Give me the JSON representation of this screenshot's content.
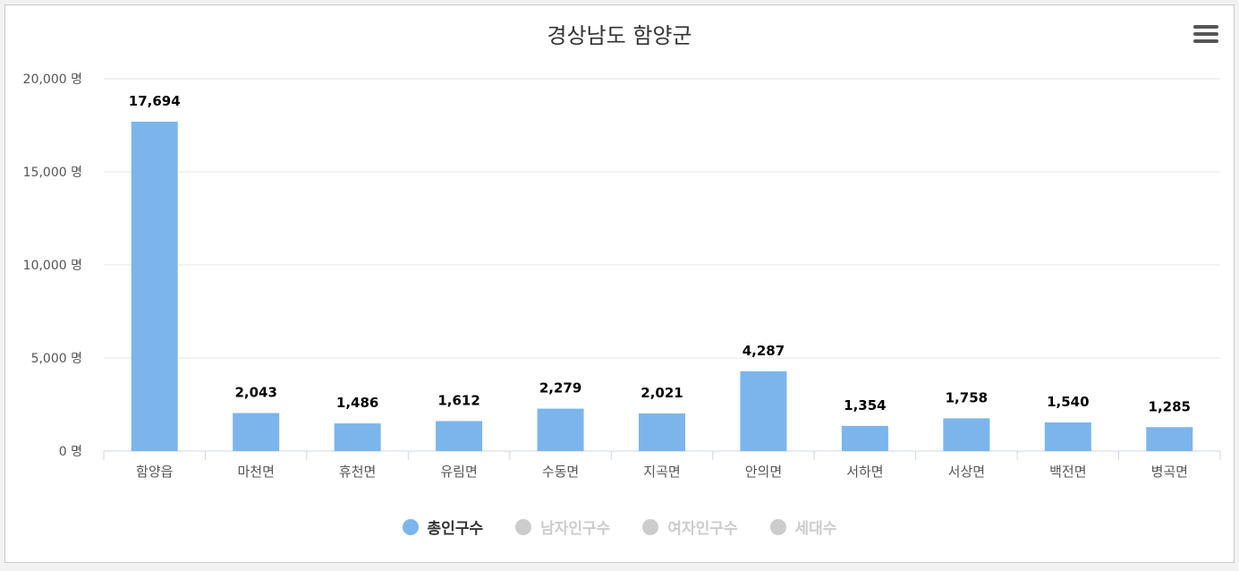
{
  "chart_data": {
    "type": "bar",
    "title": "경상남도 함양군",
    "categories": [
      "함양읍",
      "마천면",
      "휴천면",
      "유림면",
      "수동면",
      "지곡면",
      "안의면",
      "서하면",
      "서상면",
      "백전면",
      "병곡면"
    ],
    "series": [
      {
        "name": "총인구수",
        "values": [
          17694,
          2043,
          1486,
          1612,
          2279,
          2021,
          4287,
          1354,
          1758,
          1540,
          1285
        ]
      }
    ],
    "data_labels": [
      "17,694",
      "2,043",
      "1,486",
      "1,612",
      "2,279",
      "2,021",
      "4,287",
      "1,354",
      "1,758",
      "1,540",
      "1,285"
    ],
    "ylim": [
      0,
      20000
    ],
    "y_ticks": [
      0,
      5000,
      10000,
      15000,
      20000
    ],
    "y_tick_labels": [
      "0 명",
      "5,000 명",
      "10,000 명",
      "15,000 명",
      "20,000 명"
    ],
    "xlabel": "",
    "ylabel": "",
    "grid": true,
    "legend_position": "bottom-center",
    "colors": {
      "bar": "#7cb5ec",
      "grid": "#e6e6e6",
      "inactive": "#cccccc"
    }
  },
  "legend": {
    "items": [
      {
        "label": "총인구수",
        "active": true
      },
      {
        "label": "남자인구수",
        "active": false
      },
      {
        "label": "여자인구수",
        "active": false
      },
      {
        "label": "세대수",
        "active": false
      }
    ]
  },
  "icons": {
    "menu": "hamburger-menu-icon"
  }
}
